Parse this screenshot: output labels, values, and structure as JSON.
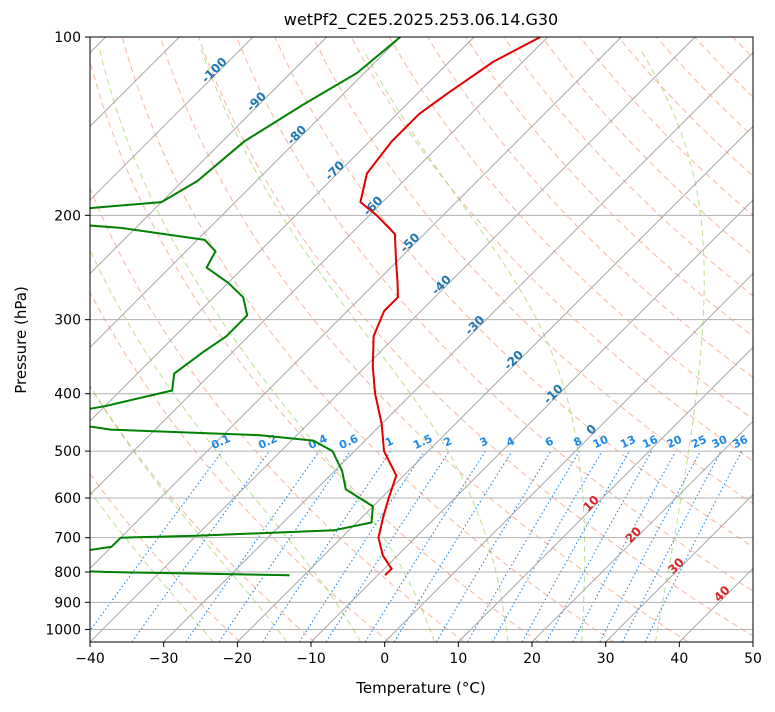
{
  "chart_data": {
    "type": "line",
    "title": "wetPf2_C2E5.2025.253.06.14.G30",
    "xlabel": "Temperature (°C)",
    "ylabel": "Pressure (hPa)",
    "xlim": [
      -40,
      50
    ],
    "ylim": [
      1050,
      100
    ],
    "y_scale": "log",
    "grid": true,
    "x_ticks": [
      "−40",
      "−30",
      "−20",
      "−10",
      "0",
      "10",
      "20",
      "30",
      "40",
      "50"
    ],
    "y_ticks": [
      "100",
      "200",
      "300",
      "400",
      "500",
      "600",
      "700",
      "800",
      "900",
      "1000"
    ],
    "background_lines": {
      "isotherms_skewed": true,
      "dry_adiabats": "dashed, #f4a582",
      "moist_adiabats": "dashed, #a6d96a",
      "mixing_ratio_lines": "dotted, #1e88e5"
    },
    "mixing_ratio_labels": [
      "0.1",
      "0.2",
      "0.4",
      "0.6",
      "1",
      "1.5",
      "2",
      "3",
      "4",
      "6",
      "8",
      "10",
      "13",
      "16",
      "20",
      "25",
      "30",
      "36"
    ],
    "isotherm_labels_upper": [
      "-100",
      "-90",
      "-80",
      "-70",
      "-60",
      "-50",
      "-40",
      "-30",
      "-20",
      "-10",
      "0"
    ],
    "isotherm_labels_lower": [
      "10",
      "20",
      "30",
      "40"
    ],
    "colors": {
      "temperature": "#e00000",
      "dewpoint": "#008000",
      "isotherm_label_upper": "#1f77b4",
      "isotherm_label_lower": "#d62728",
      "mixing_ratio": "#1e88e5"
    },
    "series": [
      {
        "key": "temperature",
        "points": [
          [
            -61,
            100
          ],
          [
            -64,
            110
          ],
          [
            -66,
            125
          ],
          [
            -67,
            135
          ],
          [
            -67,
            150
          ],
          [
            -66,
            170
          ],
          [
            -63,
            190
          ],
          [
            -59,
            200
          ],
          [
            -54,
            215
          ],
          [
            -50,
            240
          ],
          [
            -47,
            260
          ],
          [
            -45,
            275
          ],
          [
            -45,
            290
          ],
          [
            -43,
            320
          ],
          [
            -39,
            360
          ],
          [
            -35,
            400
          ],
          [
            -30,
            450
          ],
          [
            -26,
            500
          ],
          [
            -21,
            550
          ],
          [
            -19,
            600
          ],
          [
            -17,
            650
          ],
          [
            -15,
            700
          ],
          [
            -12,
            750
          ],
          [
            -9,
            790
          ],
          [
            -9,
            810
          ]
        ]
      },
      {
        "key": "dewpoint",
        "points": [
          [
            -80,
            100
          ],
          [
            -81,
            115
          ],
          [
            -84,
            130
          ],
          [
            -87,
            150
          ],
          [
            -88,
            175
          ],
          [
            -90,
            190
          ],
          [
            -104,
            197
          ],
          [
            -104,
            205
          ],
          [
            -92,
            210
          ],
          [
            -79,
            220
          ],
          [
            -76,
            230
          ],
          [
            -75,
            245
          ],
          [
            -70,
            260
          ],
          [
            -66,
            275
          ],
          [
            -63,
            295
          ],
          [
            -63,
            320
          ],
          [
            -64,
            340
          ],
          [
            -65,
            370
          ],
          [
            -63,
            395
          ],
          [
            -70,
            420
          ],
          [
            -78,
            440
          ],
          [
            -66,
            460
          ],
          [
            -45,
            470
          ],
          [
            -37,
            480
          ],
          [
            -33,
            500
          ],
          [
            -29,
            540
          ],
          [
            -26,
            580
          ],
          [
            -20,
            620
          ],
          [
            -18,
            660
          ],
          [
            -22,
            680
          ],
          [
            -40,
            695
          ],
          [
            -50,
            700
          ],
          [
            -50,
            725
          ],
          [
            -54,
            740
          ],
          [
            -64,
            765
          ],
          [
            -55,
            780
          ],
          [
            -60,
            790
          ],
          [
            -47,
            800
          ],
          [
            -22,
            810
          ]
        ]
      }
    ]
  }
}
